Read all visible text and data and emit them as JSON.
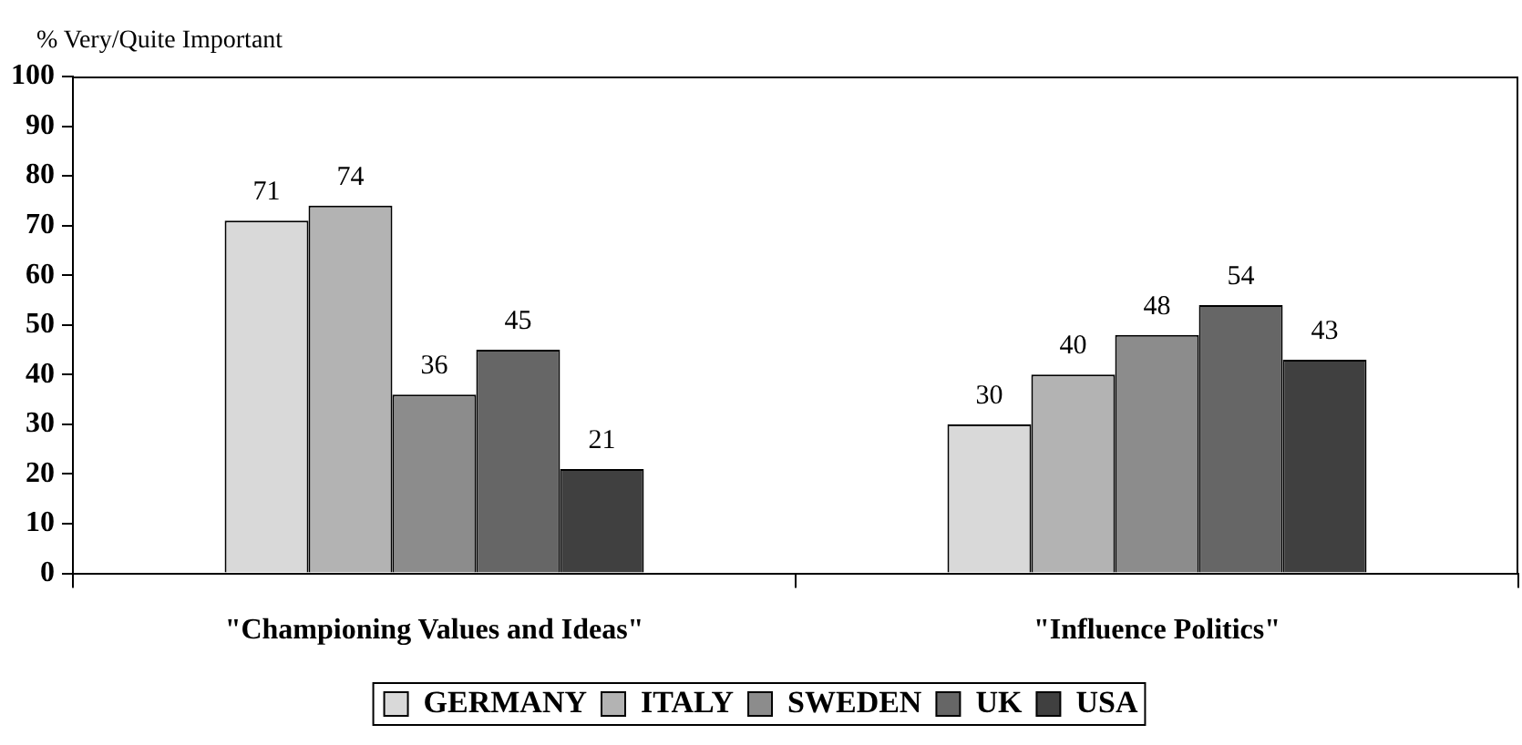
{
  "chart_data": {
    "type": "bar",
    "ylabel": "% Very/Quite Important",
    "categories": [
      "\"Championing Values and Ideas\"",
      "\"Influence Politics\""
    ],
    "series": [
      {
        "name": "GERMANY",
        "color": "#d9d9d9",
        "values": [
          71,
          30
        ]
      },
      {
        "name": "ITALY",
        "color": "#b3b3b3",
        "values": [
          74,
          40
        ]
      },
      {
        "name": "SWEDEN",
        "color": "#8c8c8c",
        "values": [
          36,
          48
        ]
      },
      {
        "name": "UK",
        "color": "#666666",
        "values": [
          45,
          54
        ]
      },
      {
        "name": "USA",
        "color": "#404040",
        "values": [
          21,
          43
        ]
      }
    ],
    "ylim": [
      0,
      100
    ],
    "yticks": [
      0,
      10,
      20,
      30,
      40,
      50,
      60,
      70,
      80,
      90,
      100
    ],
    "grid": false,
    "legend": "bottom",
    "data_labels": true
  }
}
